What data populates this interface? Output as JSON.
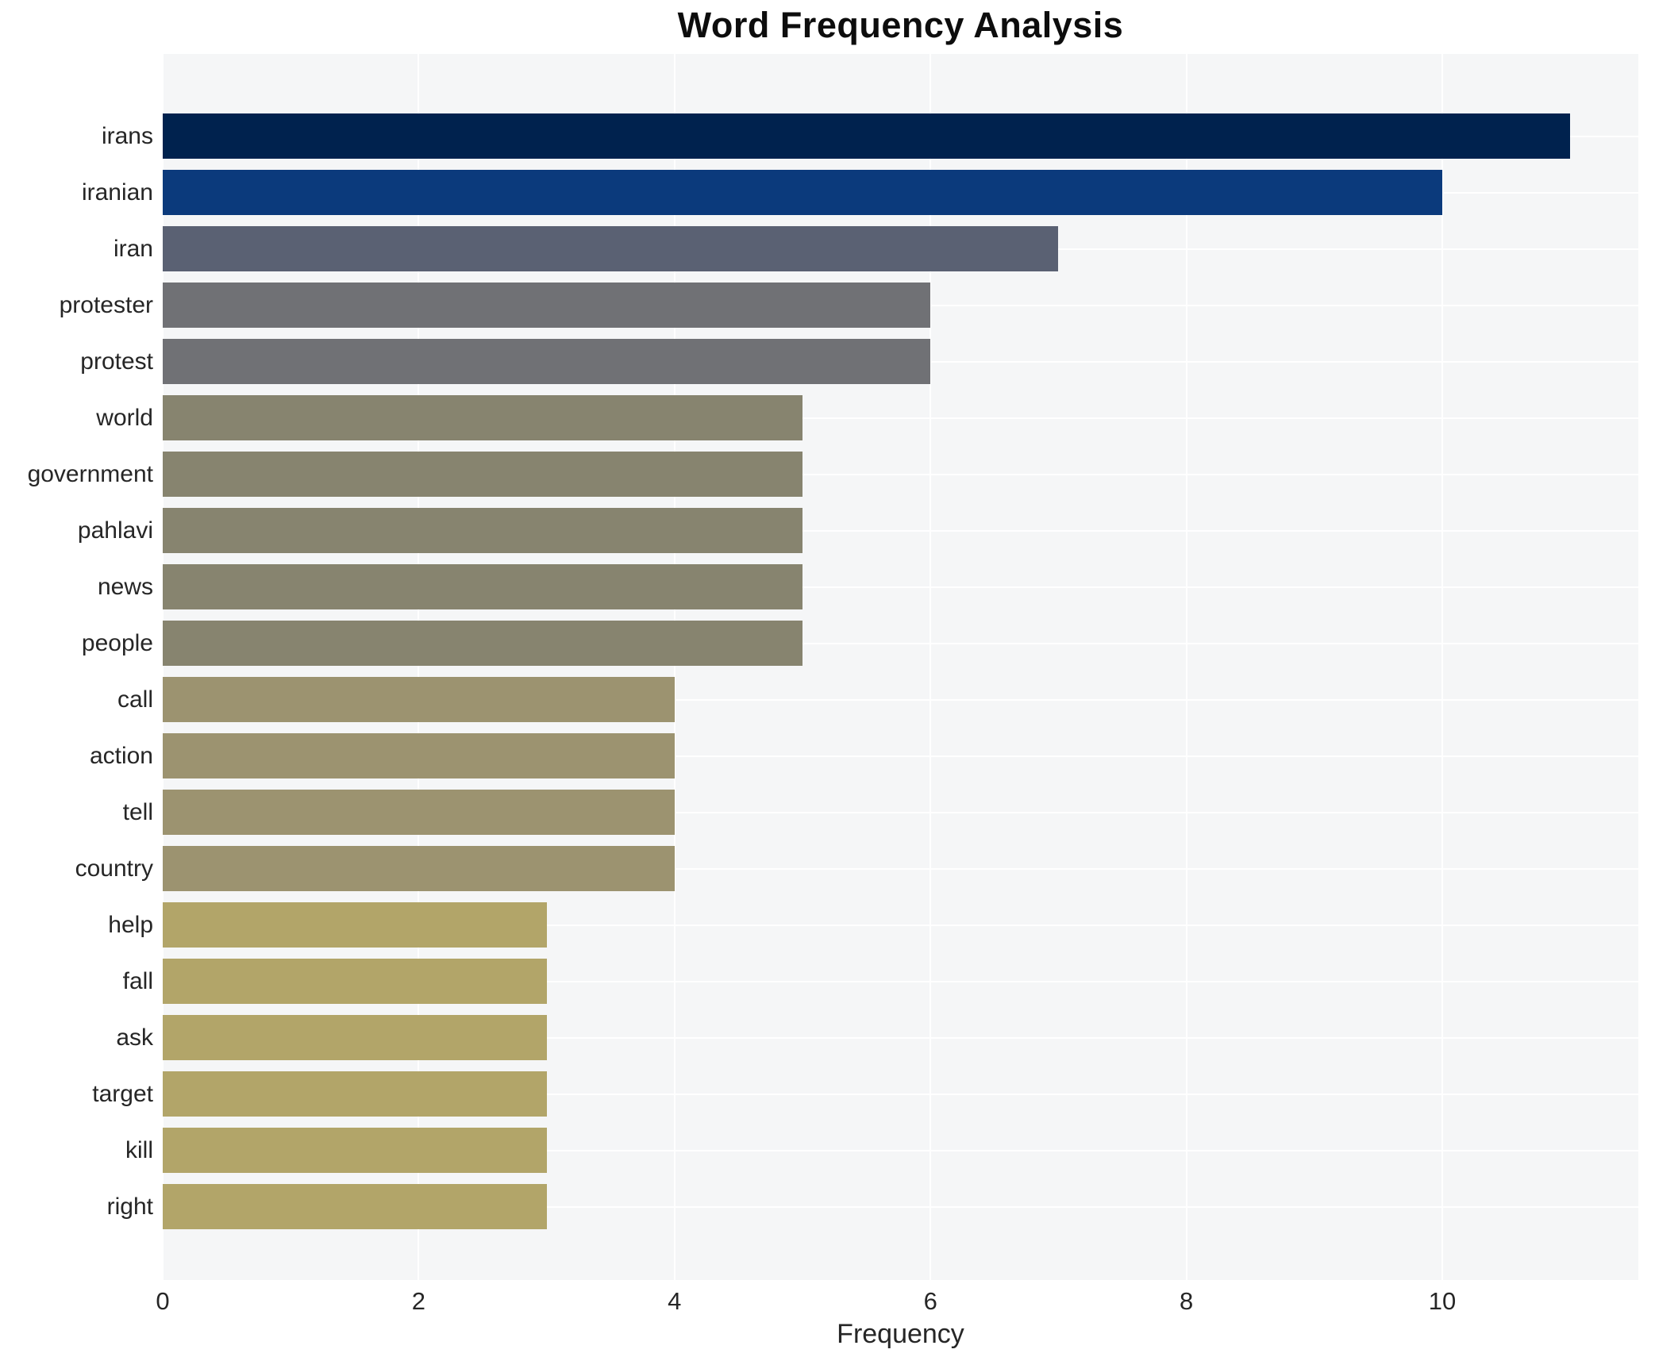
{
  "chart_data": {
    "type": "bar",
    "orientation": "horizontal",
    "title": "Word Frequency Analysis",
    "xlabel": "Frequency",
    "ylabel": "",
    "categories": [
      "irans",
      "iranian",
      "iran",
      "protester",
      "protest",
      "world",
      "government",
      "pahlavi",
      "news",
      "people",
      "call",
      "action",
      "tell",
      "country",
      "help",
      "fall",
      "ask",
      "target",
      "kill",
      "right"
    ],
    "values": [
      11,
      10,
      7,
      6,
      6,
      5,
      5,
      5,
      5,
      5,
      4,
      4,
      4,
      4,
      3,
      3,
      3,
      3,
      3,
      3
    ],
    "bar_colors": [
      "#00224e",
      "#0b3a7c",
      "#5a6173",
      "#707175",
      "#707175",
      "#87846f",
      "#87846f",
      "#87846f",
      "#87846f",
      "#87846f",
      "#9c9370",
      "#9c9370",
      "#9c9370",
      "#9c9370",
      "#b2a569",
      "#b2a569",
      "#b2a569",
      "#b2a569",
      "#b2a569",
      "#b2a569"
    ],
    "x_ticks": [
      0,
      2,
      4,
      6,
      8,
      10
    ],
    "xlim": [
      0,
      11.53
    ],
    "grid": true,
    "grid_color": "#ffffff",
    "plot_background": "#f5f6f7",
    "figure_background": "#ffffff",
    "legend": false,
    "text_color": "#262626"
  }
}
